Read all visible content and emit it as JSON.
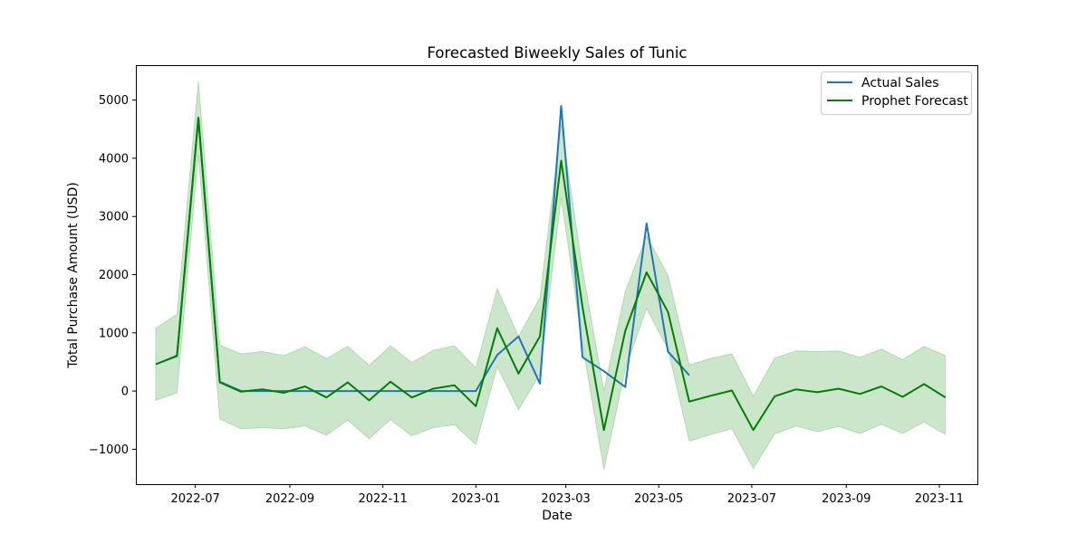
{
  "chart_data": {
    "type": "line",
    "title": "Forecasted Biweekly Sales of Tunic",
    "xlabel": "Date",
    "ylabel": "Total Purchase Amount (USD)",
    "xlim": [
      "2022-05-23",
      "2023-11-26"
    ],
    "ylim": [
      -1600,
      5600
    ],
    "x_ticks": [
      "2022-07",
      "2022-09",
      "2022-11",
      "2023-01",
      "2023-03",
      "2023-05",
      "2023-07",
      "2023-09",
      "2023-11"
    ],
    "x_tick_dates": [
      "2022-07-01",
      "2022-09-01",
      "2022-11-01",
      "2023-01-01",
      "2023-03-01",
      "2023-05-01",
      "2023-07-01",
      "2023-09-01",
      "2023-11-01"
    ],
    "y_ticks": [
      -1000,
      0,
      1000,
      2000,
      3000,
      4000,
      5000
    ],
    "y_tick_labels": [
      "−1000",
      "0",
      "1000",
      "2000",
      "3000",
      "4000",
      "5000"
    ],
    "legend": {
      "position": "top-right",
      "entries": [
        "Actual Sales",
        "Prophet Forecast"
      ]
    },
    "grid": false,
    "series": [
      {
        "name": "Actual Sales",
        "color": "#1f77b4",
        "x": [
          "2022-06-05",
          "2022-06-19",
          "2022-07-03",
          "2022-07-17",
          "2022-07-31",
          "2022-08-14",
          "2022-08-28",
          "2022-09-11",
          "2022-09-25",
          "2022-10-09",
          "2022-10-23",
          "2022-11-06",
          "2022-11-20",
          "2022-12-04",
          "2022-12-18",
          "2023-01-01",
          "2023-01-15",
          "2023-01-29",
          "2023-02-12",
          "2023-02-26",
          "2023-03-12",
          "2023-03-26",
          "2023-04-09",
          "2023-04-23",
          "2023-05-07",
          "2023-05-21"
        ],
        "y": [
          460,
          610,
          4700,
          160,
          0,
          0,
          0,
          0,
          0,
          0,
          0,
          0,
          0,
          0,
          0,
          0,
          620,
          940,
          130,
          4900,
          580,
          340,
          70,
          2880,
          680,
          270
        ]
      },
      {
        "name": "Prophet Forecast",
        "color": "#008000",
        "band_color": "#008000",
        "x": [
          "2022-06-05",
          "2022-06-19",
          "2022-07-03",
          "2022-07-17",
          "2022-07-31",
          "2022-08-14",
          "2022-08-28",
          "2022-09-11",
          "2022-09-25",
          "2022-10-09",
          "2022-10-23",
          "2022-11-06",
          "2022-11-20",
          "2022-12-04",
          "2022-12-18",
          "2023-01-01",
          "2023-01-15",
          "2023-01-29",
          "2023-02-12",
          "2023-02-26",
          "2023-03-12",
          "2023-03-26",
          "2023-04-09",
          "2023-04-23",
          "2023-05-07",
          "2023-05-21",
          "2023-06-04",
          "2023-06-18",
          "2023-07-02",
          "2023-07-16",
          "2023-07-30",
          "2023-08-13",
          "2023-08-27",
          "2023-09-10",
          "2023-09-24",
          "2023-10-08",
          "2023-10-22",
          "2023-11-05"
        ],
        "y": [
          460,
          600,
          4690,
          150,
          -10,
          30,
          -30,
          80,
          -110,
          150,
          -160,
          160,
          -110,
          40,
          100,
          -260,
          1080,
          300,
          940,
          3960,
          1440,
          -670,
          1030,
          2040,
          1360,
          -180,
          -80,
          10,
          -670,
          -90,
          30,
          -20,
          40,
          -50,
          80,
          -100,
          120,
          -110
        ],
        "lower": [
          -160,
          -30,
          4060,
          -480,
          -650,
          -630,
          -650,
          -600,
          -760,
          -500,
          -820,
          -490,
          -770,
          -630,
          -580,
          -920,
          420,
          -320,
          290,
          3320,
          790,
          -1350,
          370,
          1420,
          720,
          -860,
          -750,
          -650,
          -1330,
          -740,
          -600,
          -700,
          -610,
          -730,
          -570,
          -730,
          -530,
          -750
        ],
        "upper": [
          1080,
          1320,
          5330,
          790,
          640,
          680,
          610,
          760,
          560,
          770,
          440,
          780,
          490,
          700,
          780,
          400,
          1760,
          940,
          1600,
          4600,
          2090,
          10,
          1710,
          2670,
          1990,
          450,
          560,
          640,
          -90,
          570,
          690,
          680,
          690,
          580,
          720,
          540,
          770,
          610
        ]
      }
    ]
  }
}
